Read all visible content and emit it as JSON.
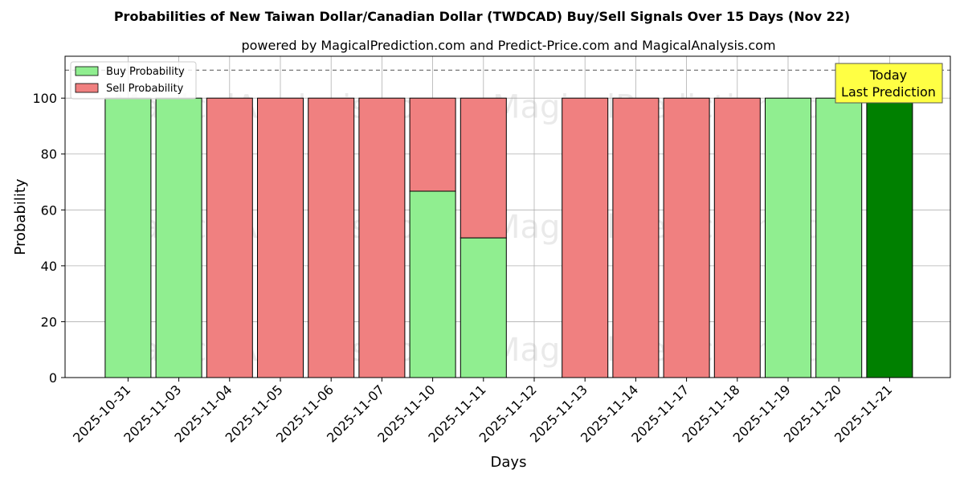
{
  "chart_data": {
    "type": "bar",
    "title": "Probabilities of New Taiwan Dollar/Canadian Dollar (TWDCAD) Buy/Sell Signals Over 15 Days (Nov 22)",
    "subtitle": "powered by MagicalPrediction.com and Predict-Price.com and MagicalAnalysis.com",
    "xlabel": "Days",
    "ylabel": "Probability",
    "ylim": [
      0,
      115
    ],
    "yticks": [
      0,
      20,
      40,
      60,
      80,
      100
    ],
    "reference_line": 110,
    "grid": true,
    "legend_position": "top-left",
    "categories": [
      "2025-10-31",
      "2025-11-03",
      "2025-11-04",
      "2025-11-05",
      "2025-11-06",
      "2025-11-07",
      "2025-11-10",
      "2025-11-11",
      "2025-11-12",
      "2025-11-13",
      "2025-11-14",
      "2025-11-17",
      "2025-11-18",
      "2025-11-19",
      "2025-11-20",
      "2025-11-21"
    ],
    "series": [
      {
        "name": "Buy Probability",
        "color": "#90ee90",
        "values": [
          100,
          100,
          0,
          0,
          0,
          0,
          66.7,
          50,
          0,
          0,
          0,
          0,
          0,
          100,
          100,
          100
        ]
      },
      {
        "name": "Sell Probability",
        "color": "#f08080",
        "values": [
          0,
          0,
          100,
          100,
          100,
          100,
          33.3,
          50,
          0,
          100,
          100,
          100,
          100,
          0,
          0,
          0
        ]
      }
    ],
    "highlight": {
      "category": "2025-11-21",
      "color": "#008000"
    },
    "annotation": {
      "line1": "Today",
      "line2": "Last Prediction",
      "color": "#ffff44"
    },
    "watermarks": [
      "MagicalAnalysis.com",
      "MagicalPrediction.com"
    ]
  }
}
